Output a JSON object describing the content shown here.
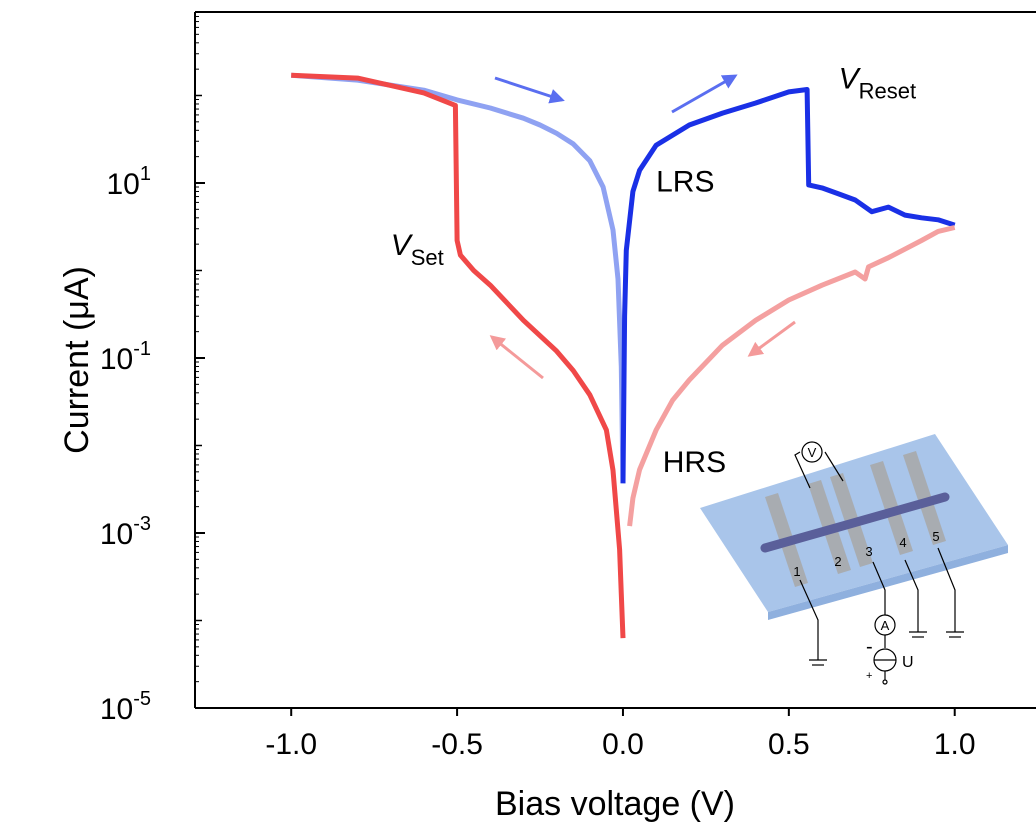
{
  "chart_data": {
    "type": "line",
    "xlabel": "Bias voltage (V)",
    "ylabel": "Current (μA)",
    "log_y": true,
    "xlim": [
      -1.29,
      1.245
    ],
    "ylim": [
      1e-05,
      900
    ],
    "xticks": [
      {
        "value": -1.0,
        "label": "-1.0"
      },
      {
        "value": -0.5,
        "label": "-0.5"
      },
      {
        "value": 0.0,
        "label": "0.0"
      },
      {
        "value": 0.5,
        "label": "0.5"
      },
      {
        "value": 1.0,
        "label": "1.0"
      }
    ],
    "yticks": [
      {
        "value": 1e-05,
        "label": "10",
        "exponent": "-5"
      },
      {
        "value": 0.001,
        "label": "10",
        "exponent": "-3"
      },
      {
        "value": 0.1,
        "label": "10",
        "exponent": "-1"
      },
      {
        "value": 10,
        "label": "10",
        "exponent": "1"
      }
    ],
    "yminorticks": [
      0.0001,
      0.01,
      1,
      100
    ],
    "series": [
      {
        "color": "#8fa2f2",
        "x": [
          -1.0,
          -0.8,
          -0.6,
          -0.5,
          -0.4,
          -0.3,
          -0.25,
          -0.2,
          -0.15,
          -0.1,
          -0.06,
          -0.03,
          -0.015,
          -0.005,
          0.0
        ],
        "values": [
          170,
          150,
          115,
          89,
          72,
          55,
          46,
          37,
          28,
          18,
          9,
          2.9,
          0.8,
          0.08,
          0.0037
        ]
      },
      {
        "color": "#1a30e6",
        "x": [
          0.0,
          0.005,
          0.01,
          0.03,
          0.05,
          0.1,
          0.2,
          0.3,
          0.4,
          0.5,
          0.555,
          0.56,
          0.6,
          0.65,
          0.7,
          0.75,
          0.8,
          0.85,
          0.9,
          0.95,
          1.0
        ],
        "values": [
          0.0037,
          0.3,
          1.7,
          8,
          14,
          27,
          46,
          63,
          82,
          110,
          117,
          9.5,
          8.8,
          7.5,
          6.4,
          4.7,
          5.3,
          4.3,
          4.0,
          3.8,
          3.3
        ]
      },
      {
        "color": "#f4a0a0",
        "x": [
          1.0,
          0.95,
          0.9,
          0.8,
          0.74,
          0.73,
          0.7,
          0.6,
          0.5,
          0.4,
          0.3,
          0.2,
          0.15,
          0.1,
          0.05,
          0.03,
          0.02
        ],
        "values": [
          3.1,
          2.8,
          2.2,
          1.4,
          1.1,
          0.8,
          0.96,
          0.68,
          0.46,
          0.27,
          0.14,
          0.056,
          0.033,
          0.015,
          0.0053,
          0.0025,
          0.0012
        ]
      },
      {
        "color": "#f04848",
        "x": [
          0.0,
          -0.005,
          -0.01,
          -0.03,
          -0.05,
          -0.1,
          -0.15,
          -0.2,
          -0.3,
          -0.4,
          -0.45,
          -0.49,
          -0.5,
          -0.505,
          -0.6,
          -0.8,
          -1.0
        ],
        "values": [
          6.3e-05,
          0.0002,
          0.00065,
          0.0052,
          0.015,
          0.038,
          0.072,
          0.12,
          0.27,
          0.68,
          1.0,
          1.5,
          2.2,
          77,
          107,
          158,
          170
        ]
      }
    ],
    "annotations": [
      {
        "text": "V",
        "subscript": "Reset",
        "x": 0.65,
        "y": 120
      },
      {
        "text": "LRS",
        "x": 0.1,
        "y": 8
      },
      {
        "text": "V",
        "subscript": "Set",
        "x": -0.7,
        "y": 1.5
      },
      {
        "text": "HRS",
        "x": 0.12,
        "y": 0.005
      }
    ],
    "inset": {
      "electrodes": [
        "1",
        "2",
        "3",
        "4",
        "5"
      ],
      "voltmeter": "V",
      "ammeter": "A",
      "source": "U",
      "minus": "-",
      "plus": "+"
    }
  }
}
